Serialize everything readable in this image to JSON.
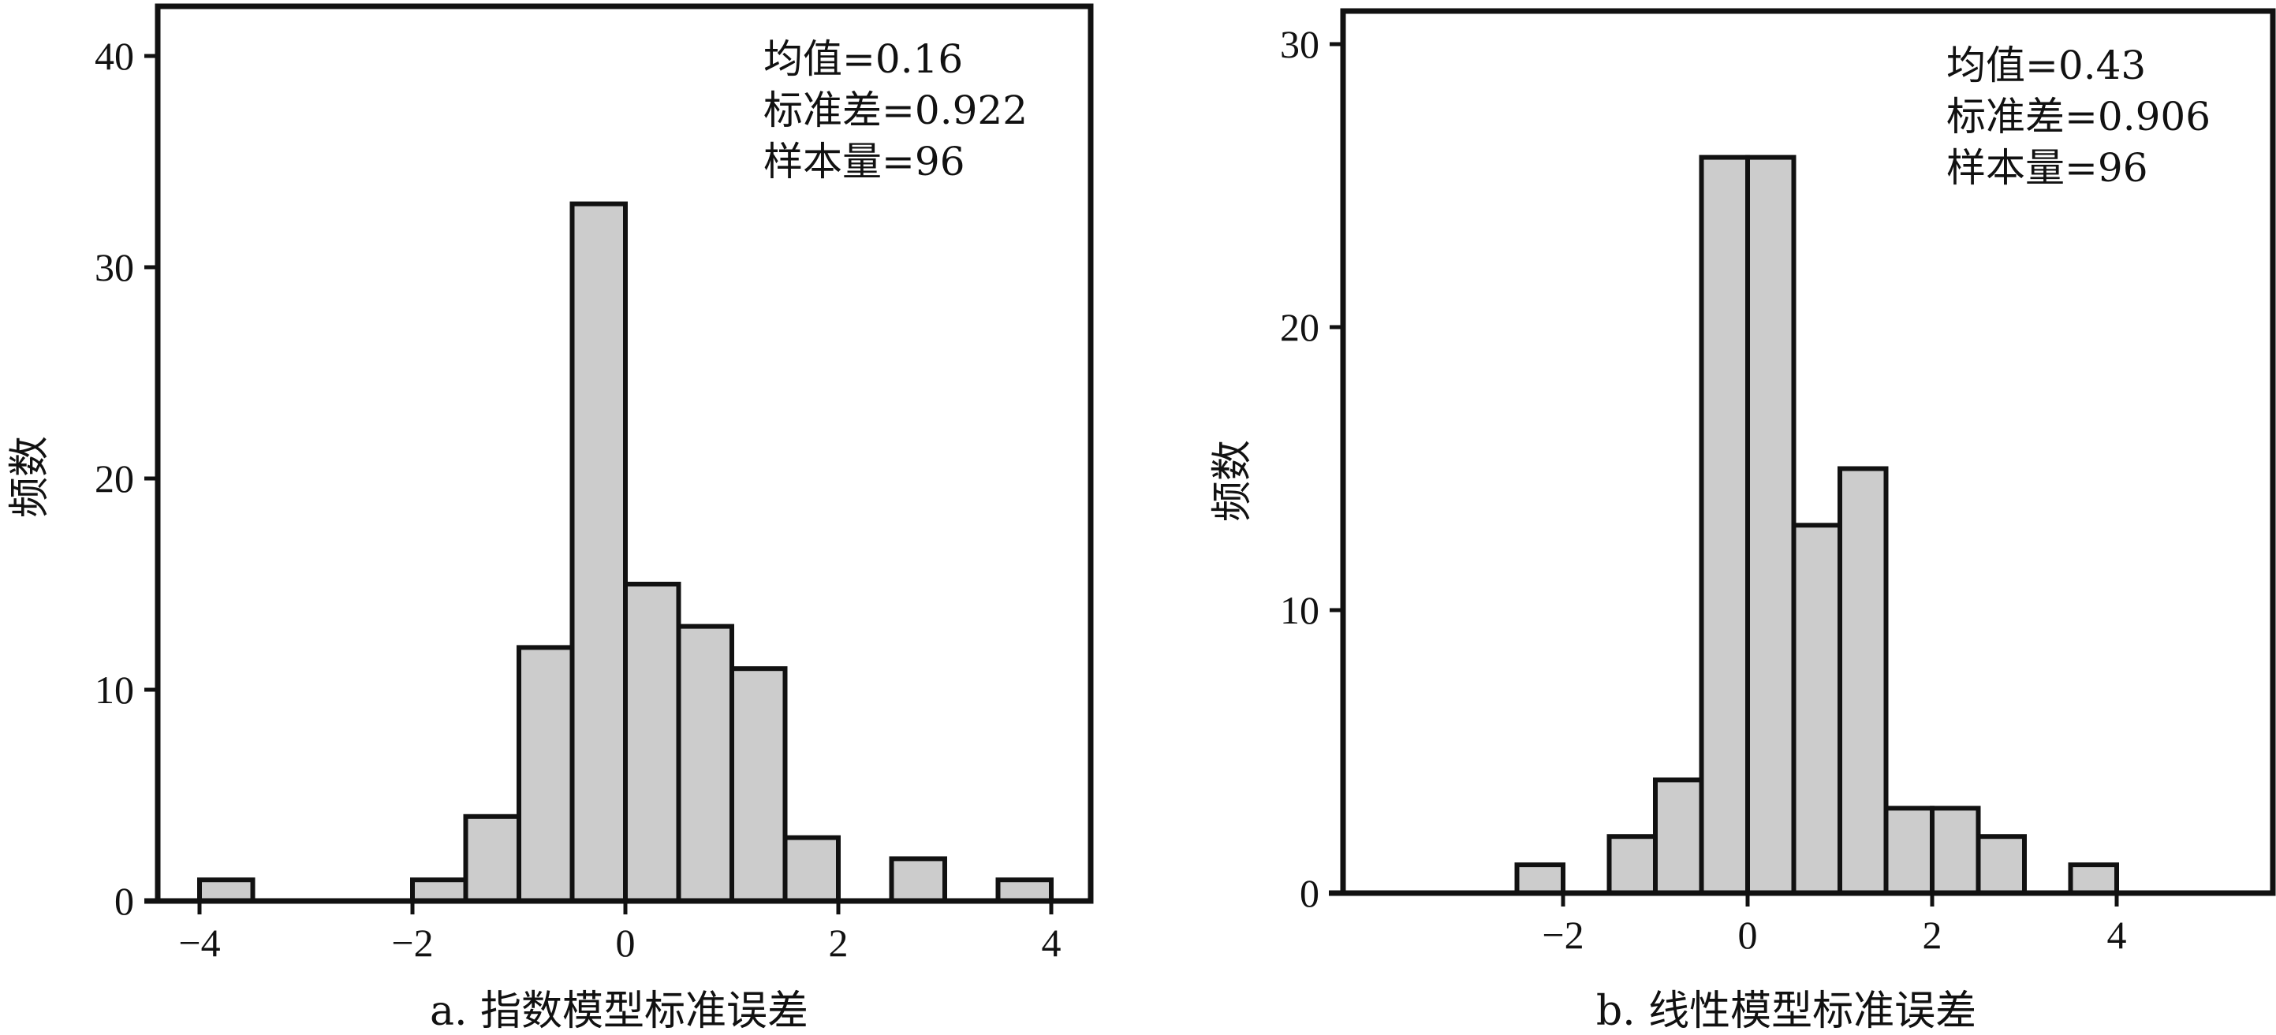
{
  "chart_data": [
    {
      "type": "bar",
      "title": "",
      "xlabel": "a. 指数模型标准误差",
      "ylabel": "频数",
      "xlim": [
        -4.3,
        4.5
      ],
      "ylim": [
        0,
        42
      ],
      "xticks": [
        -4,
        -2,
        0,
        2,
        4
      ],
      "xtick_labels": [
        "−4",
        "−2",
        "0",
        "2",
        "4"
      ],
      "yticks": [
        0,
        10,
        20,
        30,
        40
      ],
      "ytick_labels": [
        "0",
        "10",
        "20",
        "30",
        "40"
      ],
      "bin_width": 0.5,
      "bins": [
        {
          "x0": -4.0,
          "x1": -3.5,
          "value": 1
        },
        {
          "x0": -2.0,
          "x1": -1.5,
          "value": 1
        },
        {
          "x0": -1.5,
          "x1": -1.0,
          "value": 4
        },
        {
          "x0": -1.0,
          "x1": -0.5,
          "value": 12
        },
        {
          "x0": -0.5,
          "x1": 0.0,
          "value": 33
        },
        {
          "x0": 0.0,
          "x1": 0.5,
          "value": 15
        },
        {
          "x0": 0.5,
          "x1": 1.0,
          "value": 13
        },
        {
          "x0": 1.0,
          "x1": 1.5,
          "value": 11
        },
        {
          "x0": 1.5,
          "x1": 2.0,
          "value": 3
        },
        {
          "x0": 2.5,
          "x1": 3.0,
          "value": 2
        },
        {
          "x0": 3.5,
          "x1": 4.0,
          "value": 1
        }
      ],
      "stats": [
        "均值=0.16",
        "标准差=0.922",
        "样本量=96"
      ],
      "bar_fill": "#cccccc",
      "bar_stroke": "#111111",
      "grid": false
    },
    {
      "type": "bar",
      "title": "",
      "xlabel": "b. 线性模型标准误差",
      "ylabel": "频数",
      "xlim": [
        -3.3,
        4.4
      ],
      "ylim": [
        0,
        31
      ],
      "xticks": [
        -2,
        0,
        2,
        4
      ],
      "xtick_labels": [
        "−2",
        "0",
        "2",
        "4"
      ],
      "yticks": [
        0,
        10,
        20,
        30
      ],
      "ytick_labels": [
        "0",
        "10",
        "20",
        "30"
      ],
      "bin_width": 0.5,
      "bins": [
        {
          "x0": -2.5,
          "x1": -2.0,
          "value": 1
        },
        {
          "x0": -1.5,
          "x1": -1.0,
          "value": 2
        },
        {
          "x0": -1.0,
          "x1": -0.5,
          "value": 4
        },
        {
          "x0": -0.5,
          "x1": 0.0,
          "value": 26
        },
        {
          "x0": 0.0,
          "x1": 0.5,
          "value": 26
        },
        {
          "x0": 0.5,
          "x1": 1.0,
          "value": 13
        },
        {
          "x0": 1.0,
          "x1": 1.5,
          "value": 15
        },
        {
          "x0": 1.5,
          "x1": 2.0,
          "value": 3
        },
        {
          "x0": 2.0,
          "x1": 2.5,
          "value": 3
        },
        {
          "x0": 2.5,
          "x1": 3.0,
          "value": 2
        },
        {
          "x0": 3.5,
          "x1": 4.0,
          "value": 1
        }
      ],
      "stats": [
        "均值=0.43",
        "标准差=0.906",
        "样本量=96"
      ],
      "bar_fill": "#cccccc",
      "bar_stroke": "#111111",
      "grid": false
    }
  ]
}
